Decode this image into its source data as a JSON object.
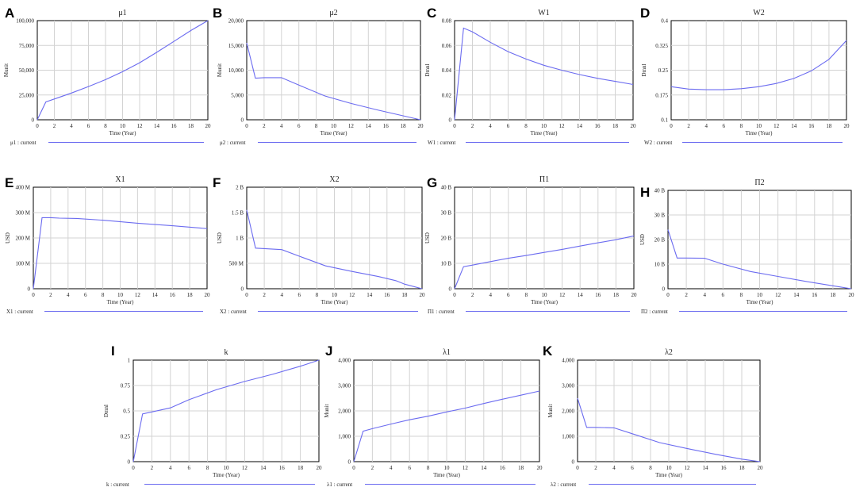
{
  "colors": {
    "series": "#6b6bf0",
    "grid": "#d3d3d3",
    "frame": "#000000",
    "background": "#ffffff"
  },
  "chart_data": [
    {
      "panel": "A",
      "type": "line",
      "title": "μ1",
      "xlabel": "Time (Year)",
      "ylabel": "Munit",
      "xlim": [
        0,
        20
      ],
      "ylim": [
        0,
        100000
      ],
      "xticks": [
        0,
        2,
        4,
        6,
        8,
        10,
        12,
        14,
        16,
        18,
        20
      ],
      "yticks": [
        0,
        25000,
        50000,
        75000,
        100000
      ],
      "ytick_labels": [
        "0",
        "25,000",
        "50,000",
        "75,000",
        "100,000"
      ],
      "legend": "μ1 : current",
      "series": [
        {
          "name": "μ1 : current",
          "x": [
            0,
            1,
            2,
            4,
            6,
            8,
            10,
            12,
            14,
            16,
            18,
            20
          ],
          "y": [
            0,
            18000,
            21000,
            27000,
            33500,
            40500,
            48500,
            57500,
            68000,
            79000,
            90000,
            100000
          ]
        }
      ]
    },
    {
      "panel": "B",
      "type": "line",
      "title": "μ2",
      "xlabel": "Time (Year)",
      "ylabel": "Munit",
      "xlim": [
        0,
        20
      ],
      "ylim": [
        0,
        20000
      ],
      "xticks": [
        0,
        2,
        4,
        6,
        8,
        10,
        12,
        14,
        16,
        18,
        20
      ],
      "yticks": [
        0,
        5000,
        10000,
        15000,
        20000
      ],
      "ytick_labels": [
        "0",
        "5,000",
        "10,000",
        "15,000",
        "20,000"
      ],
      "legend": "μ2 : current",
      "series": [
        {
          "name": "μ2 : current",
          "x": [
            0,
            1,
            2,
            4,
            6,
            9,
            12,
            15,
            18,
            20
          ],
          "y": [
            15500,
            8400,
            8500,
            8500,
            7000,
            4800,
            3300,
            2000,
            800,
            0
          ]
        }
      ]
    },
    {
      "panel": "C",
      "type": "line",
      "title": "W1",
      "xlabel": "Time (Year)",
      "ylabel": "Dmnl",
      "xlim": [
        0,
        20
      ],
      "ylim": [
        0,
        0.08
      ],
      "xticks": [
        0,
        2,
        4,
        6,
        8,
        10,
        12,
        14,
        16,
        18,
        20
      ],
      "yticks": [
        0,
        0.02,
        0.04,
        0.06,
        0.08
      ],
      "ytick_labels": [
        "0",
        "0.02",
        "0.04",
        "0.06",
        "0.08"
      ],
      "legend": "W1 : current",
      "series": [
        {
          "name": "W1 : current",
          "x": [
            0,
            1,
            2,
            4,
            6,
            8,
            10,
            12,
            14,
            16,
            18,
            20
          ],
          "y": [
            0,
            0.074,
            0.071,
            0.0625,
            0.055,
            0.049,
            0.044,
            0.04,
            0.0365,
            0.0335,
            0.031,
            0.0285
          ]
        }
      ]
    },
    {
      "panel": "D",
      "type": "line",
      "title": "W2",
      "xlabel": "Time (Year)",
      "ylabel": "Dmnl",
      "xlim": [
        0,
        20
      ],
      "ylim": [
        0.1,
        0.4
      ],
      "xticks": [
        0,
        2,
        4,
        6,
        8,
        10,
        12,
        14,
        16,
        18,
        20
      ],
      "yticks": [
        0.1,
        0.175,
        0.25,
        0.325,
        0.4
      ],
      "ytick_labels": [
        "0.1",
        "0.175",
        "0.25",
        "0.325",
        "0.4"
      ],
      "legend": "W2 : current",
      "series": [
        {
          "name": "W2 : current",
          "x": [
            0,
            2,
            4,
            6,
            8,
            10,
            12,
            14,
            16,
            18,
            20
          ],
          "y": [
            0.2,
            0.193,
            0.191,
            0.191,
            0.194,
            0.2,
            0.21,
            0.225,
            0.248,
            0.283,
            0.34
          ]
        }
      ]
    },
    {
      "panel": "E",
      "type": "line",
      "title": "X1",
      "xlabel": "Time (Year)",
      "ylabel": "USD",
      "xlim": [
        0,
        20
      ],
      "ylim": [
        0,
        400
      ],
      "xticks": [
        0,
        2,
        4,
        6,
        8,
        10,
        12,
        14,
        16,
        18,
        20
      ],
      "yticks": [
        0,
        100,
        200,
        300,
        400
      ],
      "ytick_labels": [
        "0",
        "100 M",
        "200 M",
        "300 M",
        "400 M"
      ],
      "legend": "X1 : current",
      "series": [
        {
          "name": "X1 : current",
          "x": [
            0,
            1,
            2,
            3,
            5,
            8,
            12,
            16,
            20
          ],
          "y": [
            0,
            280,
            280,
            278,
            277,
            270,
            258,
            248,
            237
          ]
        }
      ]
    },
    {
      "panel": "F",
      "type": "line",
      "title": "X2",
      "xlabel": "Time (Year)",
      "ylabel": "USD",
      "xlim": [
        0,
        20
      ],
      "ylim": [
        0,
        2000
      ],
      "xticks": [
        0,
        2,
        4,
        6,
        8,
        10,
        12,
        14,
        16,
        18,
        20
      ],
      "yticks": [
        0,
        500,
        1000,
        1500,
        2000
      ],
      "ytick_labels": [
        "0",
        "500 M",
        "1 B",
        "1.5 B",
        "2 B"
      ],
      "legend": "X2 : current",
      "series": [
        {
          "name": "X2 : current",
          "x": [
            0,
            1,
            2,
            4,
            6,
            9,
            12,
            15,
            17,
            18,
            20
          ],
          "y": [
            1550,
            800,
            790,
            770,
            640,
            450,
            340,
            240,
            160,
            90,
            0
          ]
        }
      ]
    },
    {
      "panel": "G",
      "type": "line",
      "title": "Π1",
      "xlabel": "Time (Year)",
      "ylabel": "USD",
      "xlim": [
        0,
        20
      ],
      "ylim": [
        0,
        40
      ],
      "xticks": [
        0,
        2,
        4,
        6,
        8,
        10,
        12,
        14,
        16,
        18,
        20
      ],
      "yticks": [
        0,
        10,
        20,
        30,
        40
      ],
      "ytick_labels": [
        "0",
        "10 B",
        "20 B",
        "30 B",
        "40 B"
      ],
      "legend": "Π1 : current",
      "series": [
        {
          "name": "Π1 : current",
          "x": [
            0,
            1,
            2,
            4,
            6,
            8,
            10,
            12,
            14,
            16,
            18,
            20
          ],
          "y": [
            0,
            8.7,
            9.3,
            10.7,
            12,
            13.1,
            14.3,
            15.5,
            16.8,
            18.1,
            19.3,
            20.8
          ]
        }
      ]
    },
    {
      "panel": "H",
      "type": "line",
      "title": "Π2",
      "xlabel": "Time (Year)",
      "ylabel": "USD",
      "xlim": [
        0,
        20
      ],
      "ylim": [
        0,
        40
      ],
      "xticks": [
        0,
        2,
        4,
        6,
        8,
        10,
        12,
        14,
        16,
        18,
        20
      ],
      "yticks": [
        0,
        10,
        20,
        30,
        40
      ],
      "ytick_labels": [
        "0",
        "10 B",
        "20 B",
        "30 B",
        "40 B"
      ],
      "legend": "Π2 : current",
      "series": [
        {
          "name": "Π2 : current",
          "x": [
            0,
            1,
            2,
            4,
            6,
            9,
            12,
            15,
            18,
            20
          ],
          "y": [
            24,
            12.5,
            12.5,
            12.4,
            10,
            7,
            5,
            3,
            1.2,
            0
          ]
        }
      ]
    },
    {
      "panel": "I",
      "type": "line",
      "title": "k",
      "xlabel": "Time (Year)",
      "ylabel": "Dmnl",
      "xlim": [
        0,
        20
      ],
      "ylim": [
        0,
        1
      ],
      "xticks": [
        0,
        2,
        4,
        6,
        8,
        10,
        12,
        14,
        16,
        18,
        20
      ],
      "yticks": [
        0,
        0.25,
        0.5,
        0.75,
        1
      ],
      "ytick_labels": [
        "0",
        "0.25",
        "0.5",
        "0.75",
        "1"
      ],
      "legend": "k : current",
      "series": [
        {
          "name": "k : current",
          "x": [
            0,
            1,
            2,
            4,
            6,
            9,
            12,
            15,
            18,
            20
          ],
          "y": [
            0,
            0.47,
            0.49,
            0.53,
            0.61,
            0.71,
            0.79,
            0.86,
            0.94,
            1.0
          ]
        }
      ]
    },
    {
      "panel": "J",
      "type": "line",
      "title": "λ1",
      "xlabel": "Time (Year)",
      "ylabel": "Munit",
      "xlim": [
        0,
        20
      ],
      "ylim": [
        0,
        4000
      ],
      "xticks": [
        0,
        2,
        4,
        6,
        8,
        10,
        12,
        14,
        16,
        18,
        20
      ],
      "yticks": [
        0,
        1000,
        2000,
        3000,
        4000
      ],
      "ytick_labels": [
        "0",
        "1,000",
        "2,000",
        "3,000",
        "4,000"
      ],
      "legend": "λ1 : current",
      "series": [
        {
          "name": "λ1 : current",
          "x": [
            0,
            1,
            2,
            4,
            6,
            8,
            10,
            12,
            14,
            16,
            18,
            20
          ],
          "y": [
            0,
            1200,
            1300,
            1480,
            1650,
            1790,
            1960,
            2110,
            2290,
            2460,
            2620,
            2780
          ]
        }
      ]
    },
    {
      "panel": "K",
      "type": "line",
      "title": "λ2",
      "xlabel": "Time (Year)",
      "ylabel": "Munit",
      "xlim": [
        0,
        20
      ],
      "ylim": [
        0,
        4000
      ],
      "xticks": [
        0,
        2,
        4,
        6,
        8,
        10,
        12,
        14,
        16,
        18,
        20
      ],
      "yticks": [
        0,
        1000,
        2000,
        3000,
        4000
      ],
      "ytick_labels": [
        "0",
        "1,000",
        "2,000",
        "3,000",
        "4,000"
      ],
      "legend": "λ2 : current",
      "series": [
        {
          "name": "λ2 : current",
          "x": [
            0,
            1,
            2,
            4,
            6,
            9,
            12,
            15,
            18,
            20
          ],
          "y": [
            2500,
            1350,
            1350,
            1330,
            1100,
            750,
            520,
            300,
            100,
            0
          ]
        }
      ]
    }
  ]
}
